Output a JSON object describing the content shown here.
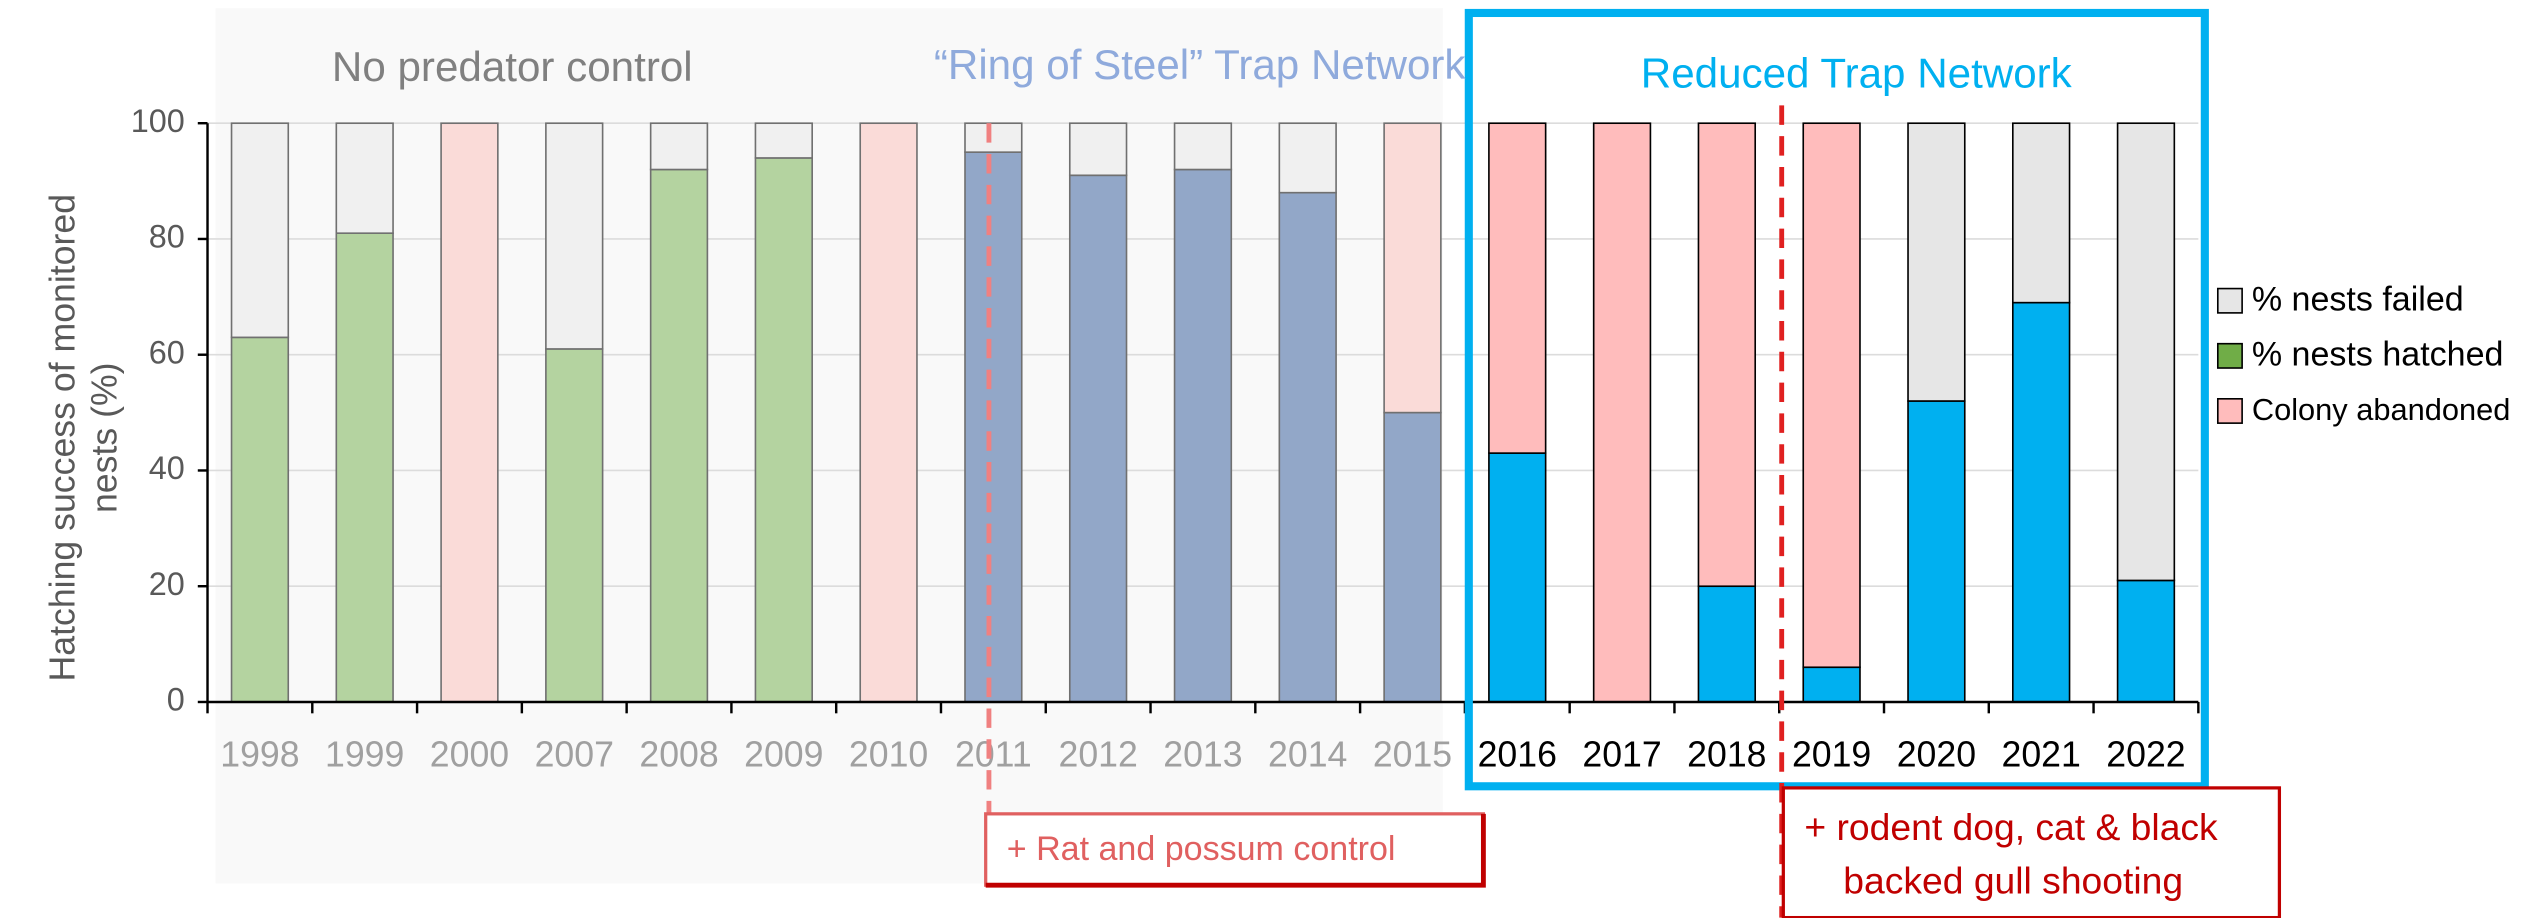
{
  "chart_data": {
    "type": "stacked_bar",
    "y_label": [
      "Hatching success of monitored",
      "nests (%)"
    ],
    "categories": [
      "1998",
      "1999",
      "2000",
      "2007",
      "2008",
      "2009",
      "2010",
      "2011",
      "2012",
      "2013",
      "2014",
      "2015",
      "2016",
      "2017",
      "2018",
      "2019",
      "2020",
      "2021",
      "2022"
    ],
    "series": [
      {
        "name": "% nests hatched",
        "color": "#70ad47",
        "colors": [
          "#b4d3a0",
          "#b4d3a0",
          "#b4d3a0",
          "#b4d3a0",
          "#b4d3a0",
          "#b4d3a0",
          "#b4d3a0",
          "#92a7c8",
          "#92a7c8",
          "#92a7c8",
          "#92a7c8",
          "#92a7c8",
          "#00b0f0",
          "#00b0f0",
          "#00b0f0",
          "#00b0f0",
          "#00b0f0",
          "#00b0f0",
          "#00b0f0"
        ],
        "values": [
          63,
          81,
          null,
          61,
          92,
          94,
          null,
          95,
          91,
          92,
          88,
          50,
          43,
          null,
          20,
          6,
          52,
          69,
          21
        ]
      },
      {
        "name": "% nests failed",
        "color": "#e6e6e6",
        "colors": [
          "#f0f0f0",
          "#f0f0f0",
          "#f0f0f0",
          "#f0f0f0",
          "#f0f0f0",
          "#f0f0f0",
          "#f0f0f0",
          "#f0f0f0",
          "#f0f0f0",
          "#f0f0f0",
          "#f0f0f0",
          "#f0f0f0",
          "#e6e6e6",
          "#e6e6e6",
          "#e6e6e6",
          "#e6e6e6",
          "#e6e6e6",
          "#e6e6e6",
          "#e6e6e6"
        ],
        "values": [
          37,
          19,
          null,
          39,
          8,
          6,
          null,
          5,
          9,
          8,
          12,
          null,
          null,
          null,
          null,
          null,
          48,
          31,
          79
        ]
      },
      {
        "name": "Colony abandoned",
        "color": "#ffbcbc",
        "colors": [
          "#fadbd8",
          "#fadbd8",
          "#fadbd8",
          "#fadbd8",
          "#fadbd8",
          "#fadbd8",
          "#fadbd8",
          "#fadbd8",
          "#fadbd8",
          "#fadbd8",
          "#fadbd8",
          "#fadbd8",
          "#ffbcbc",
          "#ffbcbc",
          "#ffbcbc",
          "#ffbcbc",
          "#ffbcbc",
          "#ffbcbc",
          "#ffbcbc"
        ],
        "values": [
          null,
          null,
          100,
          null,
          null,
          null,
          100,
          null,
          null,
          null,
          null,
          50,
          57,
          100,
          80,
          94,
          null,
          null,
          null
        ]
      }
    ],
    "ylim": [
      0,
      100
    ],
    "yticks": [
      0,
      20,
      40,
      60,
      80,
      100
    ],
    "grid": true,
    "legend": "right",
    "annotations": {
      "period1": "No predator control",
      "period2": "“Ring of Steel” Trap Network",
      "period3": "Reduced Trap Network",
      "event1": "+ Rat and possum control",
      "event2": [
        "+ rodent dog, cat  & black",
        "backed gull shooting"
      ]
    }
  }
}
